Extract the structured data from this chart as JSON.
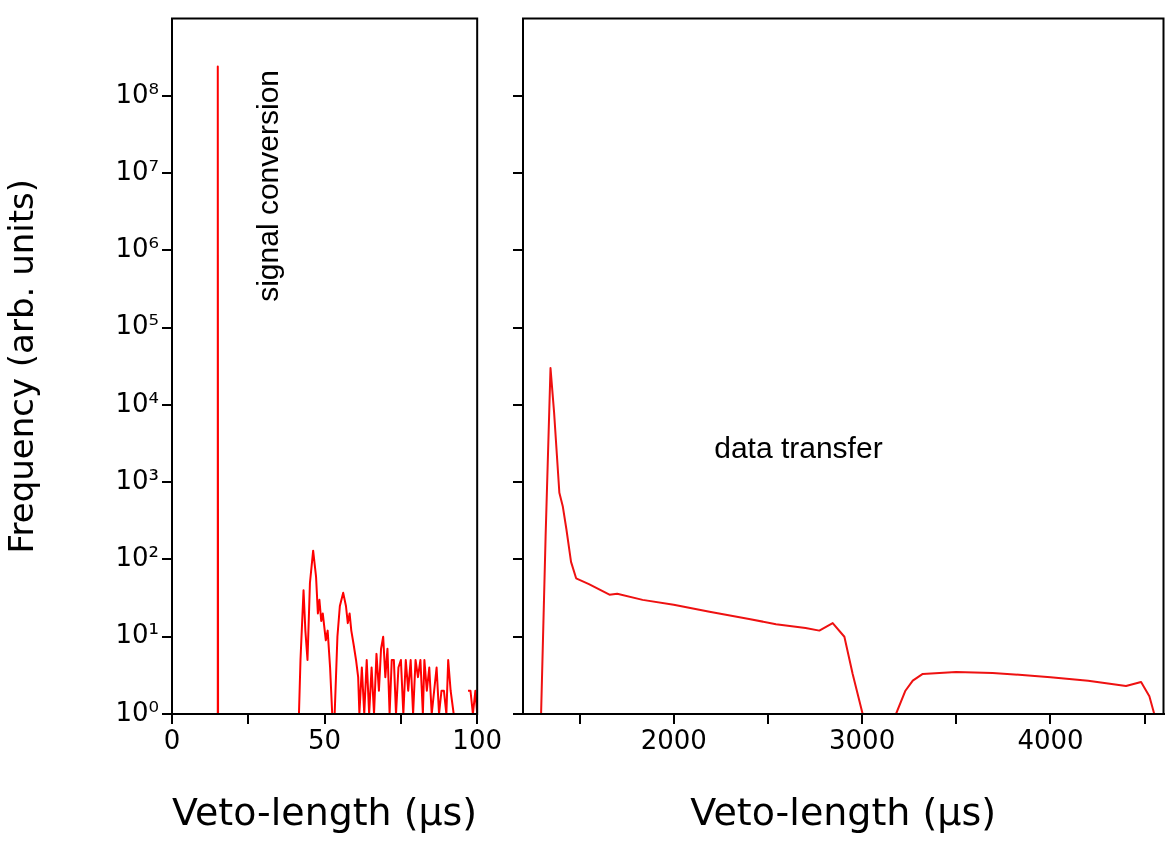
{
  "chart_data": [
    {
      "type": "line",
      "xlabel": "Veto-length (µs)",
      "ylabel": "Frequency (arb. units)",
      "annotations": [
        "signal conversion"
      ],
      "log": true,
      "xlim": [
        0,
        100
      ],
      "xticks": [
        0,
        {
          "value": 25,
          "label": null
        },
        50,
        {
          "value": 75,
          "label": null
        },
        100
      ],
      "ylim": [
        1,
        1000000000
      ],
      "yticks": [
        {
          "value": 1,
          "label": "10⁰"
        },
        {
          "value": 10,
          "label": "10¹"
        },
        {
          "value": 100,
          "label": "10²"
        },
        {
          "value": 1000,
          "label": "10³"
        },
        {
          "value": 10000,
          "label": "10⁴"
        },
        {
          "value": 100000,
          "label": "10⁵"
        },
        {
          "value": 1000000,
          "label": "10⁶"
        },
        {
          "value": 10000000,
          "label": "10⁷"
        },
        {
          "value": 100000000,
          "label": "10⁸"
        }
      ],
      "series": [
        {
          "color": "#ff0000",
          "x": [
            14.9,
            15,
            15.1,
            41.6,
            42.1,
            43.1,
            43.7,
            44.4,
            45.2,
            46.25,
            47.2,
            47.8,
            48.3,
            48.9,
            49.4,
            50.4,
            51.0,
            51.8,
            52.5,
            53.3,
            54.2,
            55.0,
            56.1,
            57.0,
            57.6,
            58.2,
            58.75,
            59.5,
            60.3,
            61.0,
            61.4,
            62.2,
            63.0,
            63.8,
            64.6,
            65.4,
            66.2,
            67.0,
            67.8,
            68.5,
            69.2,
            69.9,
            70.6,
            71.3,
            72.0,
            72.7,
            73.4,
            74.2,
            75.0,
            75.8,
            76.6,
            77.4,
            78.2,
            79.0,
            79.8,
            80.6,
            81.4,
            82.2,
            82.7,
            83.5,
            84.3,
            85.1,
            85.9,
            86.7,
            87.5,
            88.3,
            89.1,
            89.9,
            90.5,
            91.3,
            92.3,
            93.2,
            94.6,
            95.4,
            96.2,
            97.0,
            97.8,
            98.6,
            99.4,
            100
          ],
          "values": [
            1,
            240000000,
            1,
            1,
            5,
            40,
            12,
            5,
            50,
            130,
            60,
            20,
            30,
            16,
            20,
            9,
            12,
            4,
            1,
            1,
            10,
            25,
            37,
            25,
            15,
            20,
            12,
            8,
            5,
            3,
            1,
            4,
            1,
            5,
            1,
            4,
            1,
            6,
            2,
            7,
            10,
            3,
            7,
            1,
            5,
            5,
            1,
            4,
            5,
            1,
            5,
            2,
            5,
            1,
            5,
            3,
            5,
            1,
            5,
            2,
            4,
            1,
            2,
            4,
            1,
            2,
            2,
            1,
            5,
            2,
            1,
            null,
            null,
            null,
            null,
            2,
            2,
            1,
            2,
            1
          ]
        }
      ]
    },
    {
      "type": "line",
      "xlabel": "Veto-length (µs)",
      "annotations": [
        "data transfer"
      ],
      "log": true,
      "tick_labels": "x",
      "xlim": [
        1200,
        4600
      ],
      "xticks": [
        {
          "value": 1500,
          "label": null
        },
        2000,
        {
          "value": 2500,
          "label": null
        },
        3000,
        {
          "value": 3500,
          "label": null
        },
        4000,
        {
          "value": 4500,
          "label": null
        }
      ],
      "ylim": [
        1,
        1000000000
      ],
      "yticks": [
        {
          "value": 1,
          "label": null
        },
        {
          "value": 10,
          "label": null
        },
        {
          "value": 100,
          "label": null
        },
        {
          "value": 1000,
          "label": null
        },
        {
          "value": 10000,
          "label": null
        },
        {
          "value": 100000,
          "label": null
        },
        {
          "value": 1000000,
          "label": null
        },
        {
          "value": 10000000,
          "label": null
        },
        {
          "value": 100000000,
          "label": null
        }
      ],
      "series": [
        {
          "color": "#ee1111",
          "x": [
            1296,
            1320,
            1346,
            1365,
            1393,
            1411,
            1430,
            1455,
            1482,
            1550,
            1659,
            1700,
            1835,
            2000,
            2190,
            2400,
            2543,
            2700,
            2773,
            2844,
            2906,
            2950,
            3003,
            3100,
            3180,
            3230,
            3269,
            3322,
            3499,
            3693,
            3850,
            4000,
            4200,
            4401,
            4481,
            4525,
            4551
          ],
          "values": [
            1,
            200,
            30000,
            8000,
            730,
            490,
            250,
            93,
            57,
            48,
            35,
            36,
            30,
            26,
            21,
            17,
            14.5,
            13,
            12,
            15,
            10,
            3.3,
            1,
            null,
            1,
            2,
            2.7,
            3.3,
            3.5,
            3.4,
            3.2,
            3,
            2.7,
            2.3,
            2.6,
            1.7,
            1
          ]
        }
      ]
    }
  ]
}
